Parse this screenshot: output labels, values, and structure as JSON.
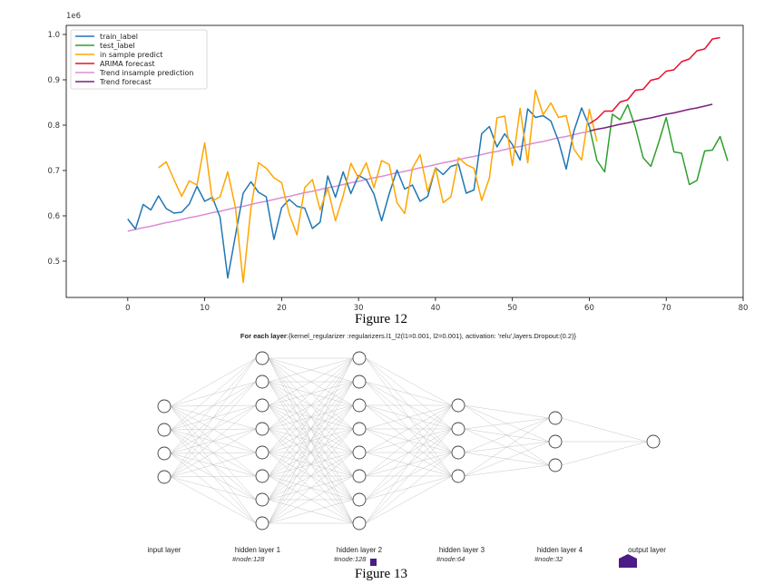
{
  "figure12": {
    "caption": "Figure 12",
    "chart_data": {
      "type": "line",
      "scale_label": "1e6",
      "xlim": [
        -8,
        80
      ],
      "ylim": [
        0.42,
        1.02
      ],
      "xticks": [
        0,
        10,
        20,
        30,
        40,
        50,
        60,
        70,
        80
      ],
      "yticks": [
        0.5,
        0.6,
        0.7,
        0.8,
        0.9,
        1.0
      ],
      "ytick_labels": [
        "0.5",
        "0.6",
        "0.7",
        "0.8",
        "0.9",
        "1.0"
      ],
      "legend_position": "top-left",
      "series": [
        {
          "name": "train_label",
          "color": "#1f77b4",
          "x0": 0,
          "values": [
            0.593,
            0.571,
            0.625,
            0.613,
            0.644,
            0.616,
            0.606,
            0.608,
            0.626,
            0.665,
            0.632,
            0.641,
            0.597,
            0.463,
            0.557,
            0.65,
            0.675,
            0.652,
            0.642,
            0.548,
            0.618,
            0.636,
            0.621,
            0.617,
            0.572,
            0.586,
            0.688,
            0.641,
            0.697,
            0.649,
            0.689,
            0.68,
            0.648,
            0.589,
            0.649,
            0.701,
            0.659,
            0.668,
            0.632,
            0.643,
            0.706,
            0.691,
            0.709,
            0.714,
            0.65,
            0.657,
            0.781,
            0.797,
            0.752,
            0.781,
            0.757,
            0.723,
            0.836,
            0.817,
            0.821,
            0.809,
            0.765,
            0.703,
            0.787,
            0.838,
            0.797
          ]
        },
        {
          "name": "test_label",
          "color": "#2ca02c",
          "x0": 60,
          "values": [
            0.797,
            0.722,
            0.697,
            0.824,
            0.812,
            0.845,
            0.795,
            0.728,
            0.709,
            0.761,
            0.817,
            0.741,
            0.738,
            0.669,
            0.678,
            0.743,
            0.745,
            0.775,
            0.721
          ]
        },
        {
          "name": "in sample predict",
          "color": "#ffa500",
          "x0": 4,
          "values": [
            0.706,
            0.719,
            0.68,
            0.643,
            0.677,
            0.668,
            0.761,
            0.633,
            0.642,
            0.697,
            0.618,
            0.453,
            0.616,
            0.717,
            0.705,
            0.684,
            0.673,
            0.604,
            0.558,
            0.662,
            0.68,
            0.613,
            0.661,
            0.589,
            0.644,
            0.716,
            0.683,
            0.717,
            0.662,
            0.722,
            0.713,
            0.629,
            0.605,
            0.705,
            0.735,
            0.653,
            0.706,
            0.629,
            0.642,
            0.728,
            0.713,
            0.705,
            0.634,
            0.683,
            0.816,
            0.82,
            0.711,
            0.837,
            0.717,
            0.877,
            0.823,
            0.849,
            0.817,
            0.821,
            0.747,
            0.723,
            0.835,
            0.764
          ]
        },
        {
          "name": "ARIMA forecast",
          "color": "#e8102a",
          "x0": 60,
          "values": [
            0.803,
            0.814,
            0.831,
            0.831,
            0.851,
            0.856,
            0.877,
            0.879,
            0.899,
            0.903,
            0.919,
            0.922,
            0.94,
            0.946,
            0.964,
            0.968,
            0.99,
            0.993
          ]
        },
        {
          "name": "Trend insample prediction",
          "color": "#da8fd6",
          "x0": 0,
          "values": [
            0.566,
            0.57,
            0.574,
            0.577,
            0.581,
            0.585,
            0.588,
            0.592,
            0.596,
            0.599,
            0.603,
            0.607,
            0.61,
            0.614,
            0.618,
            0.621,
            0.625,
            0.629,
            0.632,
            0.636,
            0.64,
            0.643,
            0.647,
            0.651,
            0.654,
            0.658,
            0.662,
            0.665,
            0.669,
            0.673,
            0.676,
            0.68,
            0.684,
            0.687,
            0.691,
            0.695,
            0.698,
            0.702,
            0.706,
            0.709,
            0.713,
            0.717,
            0.72,
            0.724,
            0.728,
            0.731,
            0.735,
            0.739,
            0.742,
            0.746,
            0.75,
            0.753,
            0.757,
            0.761,
            0.764,
            0.768,
            0.772,
            0.775,
            0.779,
            0.783,
            0.786
          ]
        },
        {
          "name": "Trend forecast",
          "color": "#7b1f7d",
          "x0": 60,
          "values": [
            0.787,
            0.791,
            0.794,
            0.798,
            0.802,
            0.805,
            0.809,
            0.813,
            0.816,
            0.82,
            0.824,
            0.827,
            0.831,
            0.835,
            0.838,
            0.842,
            0.846
          ]
        }
      ]
    }
  },
  "figure13": {
    "caption": "Figure 13",
    "title_bold": "For each layer",
    "title_rest": ":{kernel_regularizer :regularizers.l1_l2(l1=0.001, l2=0.001), activation: 'relu',layers.Dropout:(0.2)}",
    "layers": [
      {
        "label": "input layer",
        "nodes": 4,
        "sub": ""
      },
      {
        "label": "hidden layer 1",
        "nodes": 8,
        "sub": "#node:128"
      },
      {
        "label": "hidden layer 2",
        "nodes": 8,
        "sub": "#node:128"
      },
      {
        "label": "hidden layer 3",
        "nodes": 4,
        "sub": "#node:64"
      },
      {
        "label": "hidden layer 4",
        "nodes": 3,
        "sub": "#node:32"
      },
      {
        "label": "output layer",
        "nodes": 1,
        "sub": ""
      }
    ],
    "marker_color": "#4b1b86"
  }
}
